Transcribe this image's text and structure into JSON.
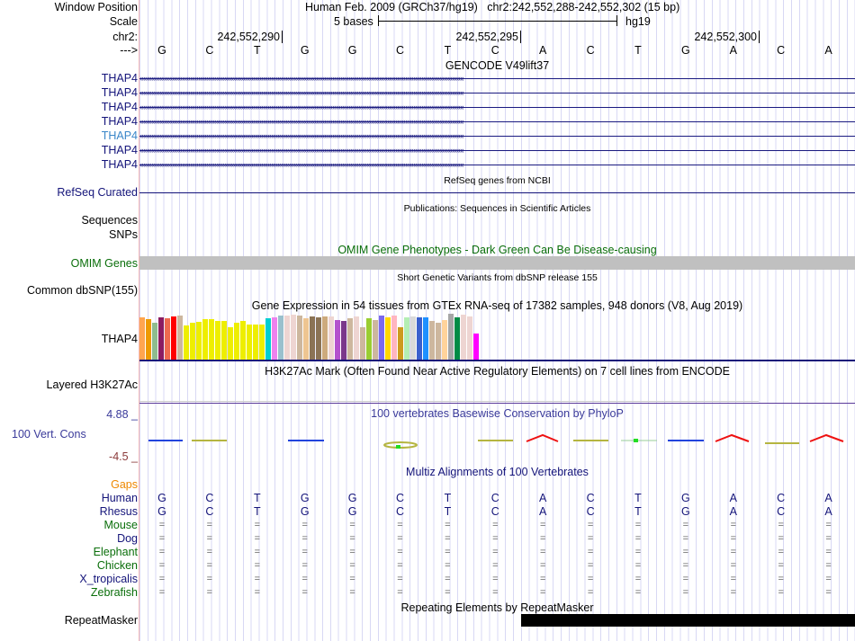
{
  "header": {
    "window_position_label": "Window Position",
    "window_position_value": "Human Feb. 2009 (GRCh37/hg19)   chr2:242,552,288-242,552,302 (15 bp)",
    "scale_label": "Scale",
    "scale_text": "5 bases",
    "scale_assembly": "hg19",
    "chrom_label": "chr2:",
    "strand_label": "--->",
    "coords": [
      "242,552,290",
      "242,552,295",
      "242,552,300"
    ]
  },
  "sequence": [
    "G",
    "C",
    "T",
    "G",
    "G",
    "C",
    "T",
    "C",
    "A",
    "C",
    "T",
    "G",
    "A",
    "C",
    "A"
  ],
  "gencode": {
    "title": "GENCODE V49lift37",
    "genes": [
      "THAP4",
      "THAP4",
      "THAP4",
      "THAP4",
      "THAP4",
      "THAP4",
      "THAP4"
    ],
    "highlight_index": 4
  },
  "refseq": {
    "title": "RefSeq genes from NCBI",
    "label": "RefSeq Curated"
  },
  "publications": {
    "title": "Publications: Sequences in Scientific Articles",
    "labels": [
      "Sequences",
      "SNPs"
    ]
  },
  "omim": {
    "title": "OMIM Gene Phenotypes - Dark Green Can Be Disease-causing",
    "label": "OMIM Genes"
  },
  "dbsnp": {
    "title": "Short Genetic Variants from dbSNP release 155",
    "label": "Common dbSNP(155)"
  },
  "gtex": {
    "title": "Gene Expression in 54 tissues from GTEx RNA-seq of 17382 samples, 948 donors (V8, Aug 2019)",
    "label": "THAP4",
    "values": [
      92,
      89,
      81,
      92,
      90,
      94,
      96,
      75,
      81,
      83,
      89,
      89,
      85,
      85,
      71,
      81,
      85,
      77,
      77,
      77,
      90,
      92,
      96,
      96,
      98,
      96,
      90,
      94,
      92,
      94,
      94,
      87,
      85,
      90,
      94,
      71,
      90,
      87,
      96,
      92,
      96,
      71,
      92,
      94,
      92,
      92,
      85,
      81,
      87,
      100,
      92,
      98,
      94,
      58
    ],
    "colors": [
      "#FFA54F",
      "#EE9A00",
      "#8FBC8F",
      "#8B1C62",
      "#EE6A50",
      "#FF0000",
      "#CDB79E",
      "#EEEE00",
      "#EEEE00",
      "#EEEE00",
      "#EEEE00",
      "#EEEE00",
      "#EEEE00",
      "#EEEE00",
      "#EEEE00",
      "#EEEE00",
      "#EEEE00",
      "#EEEE00",
      "#EEEE00",
      "#EEEE00",
      "#00CED1",
      "#EE82EE",
      "#9AC0CD",
      "#EED5D2",
      "#EED5D2",
      "#CDB79E",
      "#EEC591",
      "#8B7355",
      "#8B7355",
      "#CDAA7D",
      "#EED5D2",
      "#B452CD",
      "#7A378B",
      "#CDB79E",
      "#EED5D2",
      "#CDB79E",
      "#9ACD32",
      "#CDB79E",
      "#7B68EE",
      "#FFD700",
      "#FFB6C1",
      "#CD9B1D",
      "#B4EEB4",
      "#D9D9D9",
      "#3A5FCD",
      "#1E90FF",
      "#CDB79E",
      "#CDB79E",
      "#FFD39B",
      "#A6A6A6",
      "#008B45",
      "#EED5D2",
      "#EED5D2",
      "#FF00FF"
    ]
  },
  "h3k27ac": {
    "title": "H3K27Ac Mark (Often Found Near Active Regulatory Elements) on 7 cell lines from ENCODE",
    "label": "Layered H3K27Ac"
  },
  "phylop": {
    "title": "100 vertebrates Basewise Conservation by PhyloP",
    "label": "100 Vert. Cons",
    "max": "4.88 _",
    "min": "-4.5 _"
  },
  "multiz": {
    "title": "Multiz Alignments of 100 Vertebrates",
    "gaps_label": "Gaps",
    "species": [
      {
        "name": "Human",
        "color": "#14147a",
        "seq": [
          "G",
          "C",
          "T",
          "G",
          "G",
          "C",
          "T",
          "C",
          "A",
          "C",
          "T",
          "G",
          "A",
          "C",
          "A"
        ]
      },
      {
        "name": "Rhesus",
        "color": "#14147a",
        "seq": [
          "G",
          "C",
          "T",
          "G",
          "G",
          "C",
          "T",
          "C",
          "A",
          "C",
          "T",
          "G",
          "A",
          "C",
          "A"
        ]
      },
      {
        "name": "Mouse",
        "color": "#0a6e0a",
        "seq": "="
      },
      {
        "name": "Dog",
        "color": "#14147a",
        "seq": "="
      },
      {
        "name": "Elephant",
        "color": "#0a6e0a",
        "seq": "="
      },
      {
        "name": "Chicken",
        "color": "#0a6e0a",
        "seq": "="
      },
      {
        "name": "X_tropicalis",
        "color": "#14147a",
        "seq": "="
      },
      {
        "name": "Zebrafish",
        "color": "#0a6e0a",
        "seq": "="
      }
    ]
  },
  "repeatmasker": {
    "title": "Repeating Elements by RepeatMasker",
    "label": "RepeatMasker"
  },
  "colors": {
    "navy": "#14147a",
    "omim_bar": "#c0c0c0",
    "gaps": "#ee8800",
    "min_label": "#8b3a3a"
  }
}
